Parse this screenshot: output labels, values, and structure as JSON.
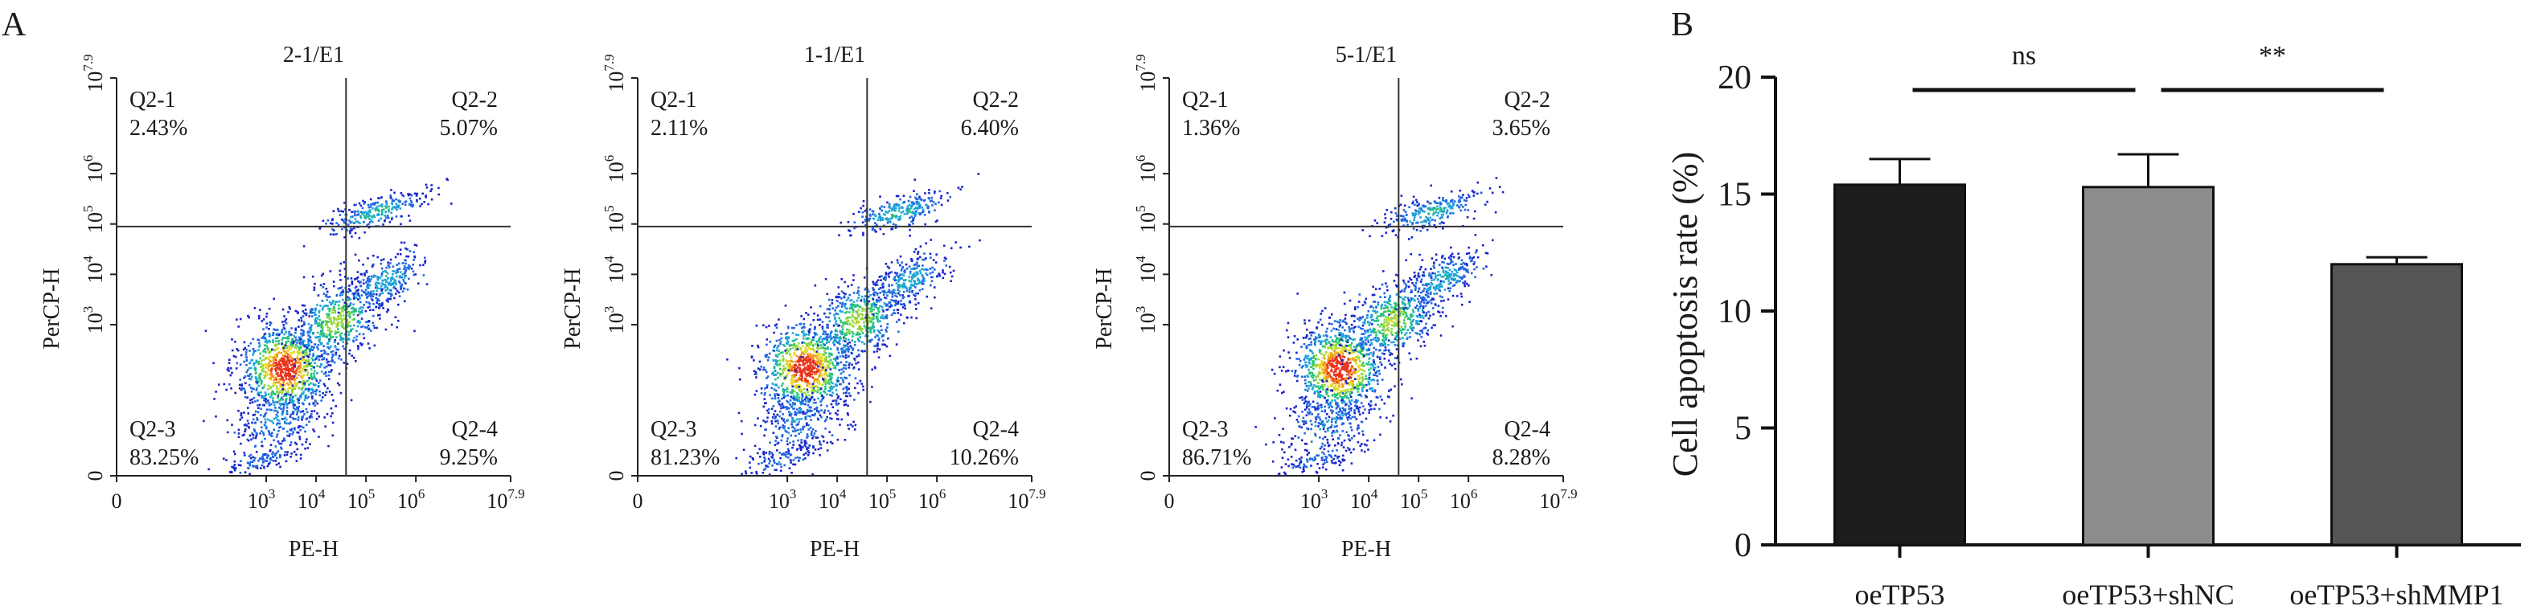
{
  "panel_labels": {
    "a": "A",
    "b": "B"
  },
  "flow": {
    "xlabel": "PE-H",
    "ylabel": "PerCP-H",
    "tick_labels": {
      "zero": "0",
      "e3": "10",
      "e4": "10",
      "e5": "10",
      "e6": "10",
      "emax": "10"
    },
    "tick_exponents": {
      "e3": "3",
      "e4": "4",
      "e5": "5",
      "e6": "6",
      "emax": "7.9"
    },
    "quadrant_names": {
      "q1": "Q2-1",
      "q2": "Q2-2",
      "q3": "Q2-3",
      "q4": "Q2-4"
    }
  },
  "chart_data": [
    {
      "type": "scatter",
      "subtype": "flow-cytometry-density",
      "title": "2-1/E1",
      "xlabel": "PE-H",
      "ylabel": "PerCP-H",
      "scale": "log",
      "xlim": [
        0,
        7.9
      ],
      "ylim": [
        0,
        7.9
      ],
      "gate": {
        "x": 4.6,
        "y": 4.95
      },
      "quadrants": [
        {
          "name": "Q2-1",
          "percent": "2.43%"
        },
        {
          "name": "Q2-2",
          "percent": "5.07%"
        },
        {
          "name": "Q2-3",
          "percent": "83.25%"
        },
        {
          "name": "Q2-4",
          "percent": "9.25%"
        }
      ]
    },
    {
      "type": "scatter",
      "subtype": "flow-cytometry-density",
      "title": "1-1/E1",
      "xlabel": "PE-H",
      "ylabel": "PerCP-H",
      "scale": "log",
      "xlim": [
        0,
        7.9
      ],
      "ylim": [
        0,
        7.9
      ],
      "gate": {
        "x": 4.6,
        "y": 4.95
      },
      "quadrants": [
        {
          "name": "Q2-1",
          "percent": "2.11%"
        },
        {
          "name": "Q2-2",
          "percent": "6.40%"
        },
        {
          "name": "Q2-3",
          "percent": "81.23%"
        },
        {
          "name": "Q2-4",
          "percent": "10.26%"
        }
      ]
    },
    {
      "type": "scatter",
      "subtype": "flow-cytometry-density",
      "title": "5-1/E1",
      "xlabel": "PE-H",
      "ylabel": "PerCP-H",
      "scale": "log",
      "xlim": [
        0,
        7.9
      ],
      "ylim": [
        0,
        7.9
      ],
      "gate": {
        "x": 4.6,
        "y": 4.95
      },
      "quadrants": [
        {
          "name": "Q2-1",
          "percent": "1.36%"
        },
        {
          "name": "Q2-2",
          "percent": "3.65%"
        },
        {
          "name": "Q2-3",
          "percent": "86.71%"
        },
        {
          "name": "Q2-4",
          "percent": "8.28%"
        }
      ]
    },
    {
      "type": "bar",
      "title": "",
      "xlabel": "",
      "ylabel": "Cell apoptosis rate (%)",
      "ylim": [
        0,
        20
      ],
      "yticks": [
        0,
        5,
        10,
        15,
        20
      ],
      "categories": [
        "oeTP53",
        "oeTP53+shNC",
        "oeTP53+shMMP1"
      ],
      "values": [
        15.4,
        15.3,
        12.0
      ],
      "errors": [
        1.1,
        1.4,
        0.3
      ],
      "colors": [
        "#1c1c1c",
        "#8c8c8c",
        "#555555"
      ],
      "significance": [
        {
          "from": 0,
          "to": 1,
          "label": "ns"
        },
        {
          "from": 1,
          "to": 2,
          "label": "**"
        }
      ]
    }
  ]
}
